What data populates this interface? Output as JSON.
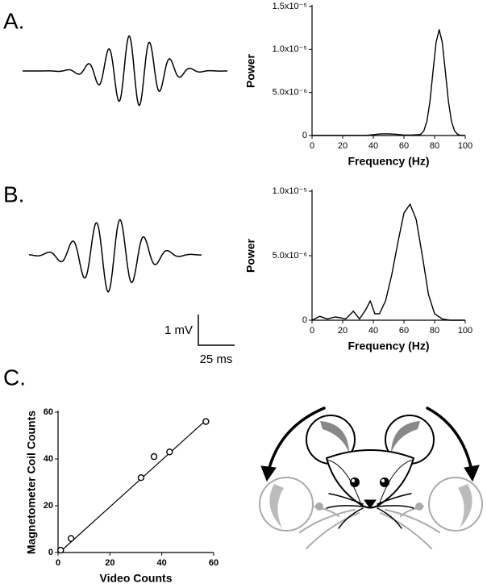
{
  "panel_labels": [
    "A.",
    "B.",
    "C."
  ],
  "scale_bar": {
    "vertical": "1 mV",
    "horizontal": "25 ms"
  },
  "chart_data": [
    {
      "type": "line",
      "x_label": "Frequency (Hz)",
      "y_label": "Power",
      "color": "#000000",
      "xlim": [
        0,
        100
      ],
      "xticks": [
        0,
        20,
        40,
        60,
        80,
        100
      ],
      "ylim": [
        0,
        1.5e-05
      ],
      "yticks": [
        0,
        {
          "value": 5e-06,
          "label": "5.0x10⁻⁶"
        },
        {
          "value": 1e-05,
          "label": "1.0x10⁻⁵"
        },
        {
          "value": 1.5e-05,
          "label": "1.5x10⁻⁵"
        }
      ],
      "x": [
        0,
        10,
        20,
        30,
        35,
        40,
        45,
        50,
        55,
        60,
        65,
        69,
        71,
        73,
        75,
        77,
        79,
        81,
        83,
        85,
        87,
        89,
        91,
        93,
        95,
        97,
        100
      ],
      "values": [
        0,
        0,
        0,
        0,
        0,
        1e-07,
        2e-07,
        2e-07,
        1.5e-07,
        5e-08,
        5e-08,
        1e-07,
        1.4e-07,
        5.4e-07,
        1.66e-06,
        4e-06,
        7.5e-06,
        1.085e-05,
        1.23e-05,
        1.085e-05,
        7.5e-06,
        4e-06,
        1.66e-06,
        5.4e-07,
        1.4e-07,
        3e-08,
        0
      ]
    },
    {
      "type": "line",
      "x_label": "Frequency (Hz)",
      "y_label": "Power",
      "color": "#000000",
      "xlim": [
        0,
        100
      ],
      "xticks": [
        0,
        20,
        40,
        60,
        80,
        100
      ],
      "ylim": [
        0,
        1e-05
      ],
      "yticks": [
        0,
        {
          "value": 5e-06,
          "label": "5.0x10⁻⁶"
        },
        {
          "value": 1e-05,
          "label": "1.0x10⁻⁵"
        }
      ],
      "x": [
        0,
        5,
        10,
        15,
        18,
        22,
        27,
        31,
        35,
        38,
        41,
        44,
        48,
        52,
        56,
        60,
        64,
        68,
        72,
        76,
        80,
        85,
        90,
        100
      ],
      "values": [
        0,
        3e-07,
        1e-07,
        2.5e-07,
        2e-07,
        1e-07,
        7e-07,
        1e-07,
        8e-07,
        1.5e-06,
        5e-07,
        5e-07,
        1.5e-06,
        3.5e-06,
        6e-06,
        8.3e-06,
        9e-06,
        7.8e-06,
        5e-06,
        2e-06,
        5e-07,
        1e-07,
        0,
        0
      ]
    },
    {
      "type": "scatter",
      "x_label": "Video Counts",
      "y_label": "Magnetometer Coil Counts",
      "color": "#000000",
      "xlim": [
        0,
        60
      ],
      "xticks": [
        0,
        20,
        40,
        60
      ],
      "ylim": [
        0,
        60
      ],
      "yticks": [
        0,
        20,
        40,
        60
      ],
      "x": [
        1,
        5,
        32,
        37,
        43,
        57
      ],
      "values": [
        1,
        6,
        32,
        41,
        43,
        56
      ],
      "fit": {
        "x": [
          0.5,
          57
        ],
        "values": [
          0,
          56.5
        ]
      }
    }
  ]
}
